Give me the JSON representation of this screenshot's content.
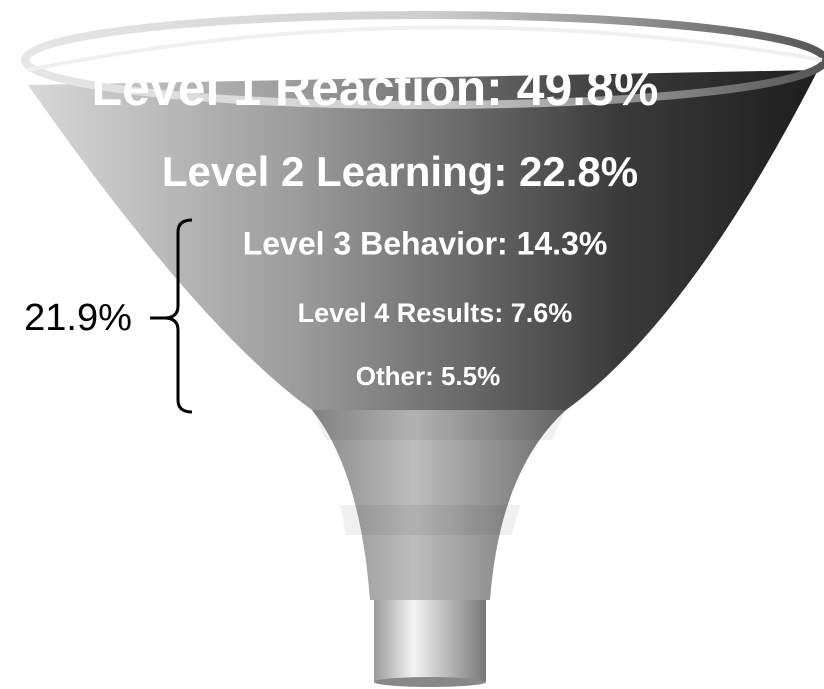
{
  "levels": [
    {
      "label": "Level 1 Reaction: 49.8%"
    },
    {
      "label": "Level 2 Learning: 22.8%"
    },
    {
      "label": "Level 3 Behavior: 14.3%"
    },
    {
      "label": "Level 4 Results: 7.6%"
    },
    {
      "label": "Other: 5.5%"
    }
  ],
  "bracket_label": "21.9%"
}
